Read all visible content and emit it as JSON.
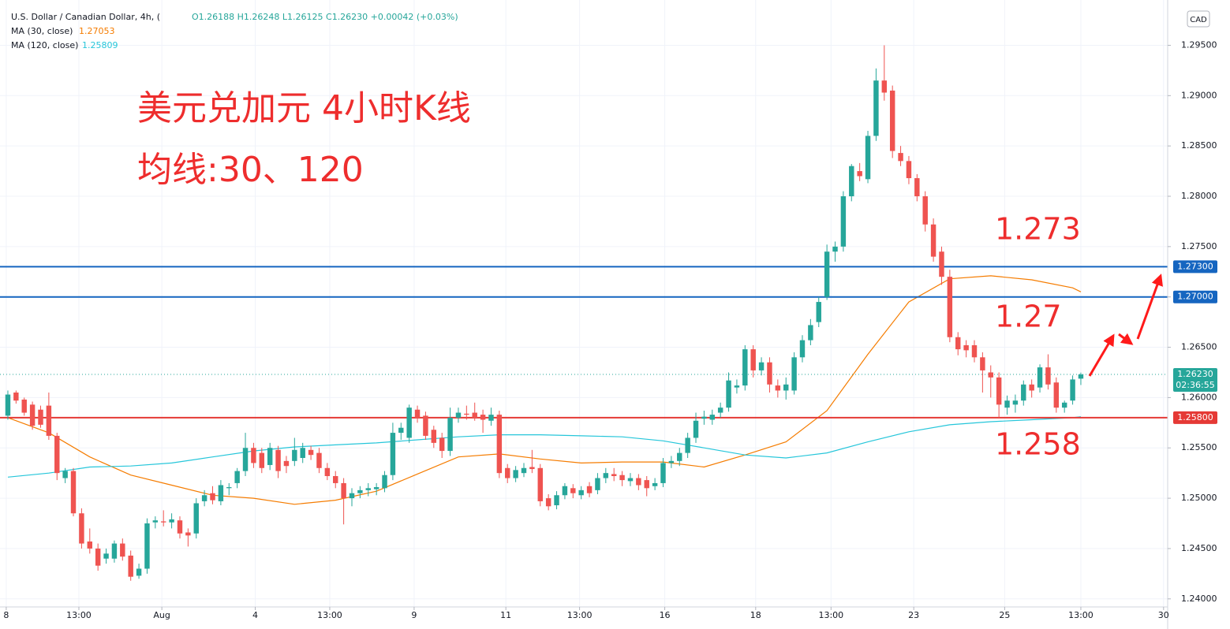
{
  "chart_data": {
    "type": "candlestick",
    "symbol": "U.S. Dollar / Canadian Dollar, 4h, (",
    "ohlc_text": "O1.26188 H1.26248 L1.26125 C1.26230 +0.00042 (+0.03%)",
    "currency": "CAD",
    "up_color": "#26a69a",
    "down_color": "#ef5350",
    "ohlc": [
      [
        1.2582,
        1.2607,
        1.2578,
        1.2603
      ],
      [
        1.2605,
        1.2607,
        1.2594,
        1.2597
      ],
      [
        1.2598,
        1.26,
        1.2582,
        1.2585
      ],
      [
        1.2593,
        1.2596,
        1.2568,
        1.2572
      ],
      [
        1.2588,
        1.2592,
        1.257,
        1.2573
      ],
      [
        1.2592,
        1.2605,
        1.2558,
        1.2562
      ],
      [
        1.2562,
        1.2565,
        1.2518,
        1.2525
      ],
      [
        1.252,
        1.253,
        1.2515,
        1.2527
      ],
      [
        1.2527,
        1.253,
        1.2482,
        1.2485
      ],
      [
        1.2485,
        1.249,
        1.245,
        1.2455
      ],
      [
        1.2457,
        1.247,
        1.2445,
        1.245
      ],
      [
        1.245,
        1.2455,
        1.2428,
        1.2433
      ],
      [
        1.244,
        1.245,
        1.2435,
        1.2445
      ],
      [
        1.244,
        1.2458,
        1.2436,
        1.2455
      ],
      [
        1.2455,
        1.246,
        1.2438,
        1.2442
      ],
      [
        1.2443,
        1.2448,
        1.2418,
        1.2422
      ],
      [
        1.2423,
        1.2435,
        1.242,
        1.243
      ],
      [
        1.243,
        1.248,
        1.2425,
        1.2475
      ],
      [
        1.2476,
        1.2482,
        1.247,
        1.2478
      ],
      [
        1.2477,
        1.2488,
        1.2472,
        1.2476
      ],
      [
        1.2476,
        1.2485,
        1.247,
        1.2479
      ],
      [
        1.2478,
        1.2482,
        1.246,
        1.2465
      ],
      [
        1.2466,
        1.247,
        1.2452,
        1.2463
      ],
      [
        1.2465,
        1.25,
        1.246,
        1.2495
      ],
      [
        1.2497,
        1.2508,
        1.2492,
        1.2503
      ],
      [
        1.2505,
        1.2512,
        1.2494,
        1.2498
      ],
      [
        1.2497,
        1.2518,
        1.2493,
        1.2513
      ],
      [
        1.251,
        1.2515,
        1.2503,
        1.2511
      ],
      [
        1.2515,
        1.253,
        1.251,
        1.2527
      ],
      [
        1.2527,
        1.2565,
        1.2522,
        1.255
      ],
      [
        1.255,
        1.2555,
        1.253,
        1.2535
      ],
      [
        1.2545,
        1.255,
        1.2525,
        1.253
      ],
      [
        1.2533,
        1.2555,
        1.2528,
        1.255
      ],
      [
        1.2548,
        1.2552,
        1.252,
        1.2527
      ],
      [
        1.2537,
        1.2542,
        1.2525,
        1.2532
      ],
      [
        1.2537,
        1.256,
        1.2532,
        1.2548
      ],
      [
        1.254,
        1.2555,
        1.2535,
        1.255
      ],
      [
        1.2548,
        1.2552,
        1.2538,
        1.2543
      ],
      [
        1.2545,
        1.255,
        1.2525,
        1.253
      ],
      [
        1.253,
        1.2535,
        1.2518,
        1.2522
      ],
      [
        1.2522,
        1.2527,
        1.251,
        1.2515
      ],
      [
        1.2515,
        1.252,
        1.2474,
        1.25
      ],
      [
        1.25,
        1.251,
        1.2492,
        1.2505
      ],
      [
        1.2505,
        1.2512,
        1.25,
        1.2508
      ],
      [
        1.2508,
        1.2515,
        1.2502,
        1.251
      ],
      [
        1.2509,
        1.2515,
        1.2503,
        1.2511
      ],
      [
        1.251,
        1.2527,
        1.2506,
        1.2523
      ],
      [
        1.2523,
        1.2575,
        1.2518,
        1.2565
      ],
      [
        1.2565,
        1.2575,
        1.2558,
        1.257
      ],
      [
        1.256,
        1.2593,
        1.2555,
        1.259
      ],
      [
        1.2588,
        1.2592,
        1.2575,
        1.258
      ],
      [
        1.2582,
        1.2586,
        1.2558,
        1.2562
      ],
      [
        1.2568,
        1.2572,
        1.255,
        1.2555
      ],
      [
        1.256,
        1.2565,
        1.254,
        1.2547
      ],
      [
        1.2547,
        1.259,
        1.2542,
        1.258
      ],
      [
        1.258,
        1.259,
        1.2575,
        1.2585
      ],
      [
        1.2584,
        1.2592,
        1.2578,
        1.2583
      ],
      [
        1.2585,
        1.2595,
        1.2577,
        1.258
      ],
      [
        1.2583,
        1.2588,
        1.2565,
        1.2578
      ],
      [
        1.2577,
        1.259,
        1.2572,
        1.2583
      ],
      [
        1.2583,
        1.2587,
        1.252,
        1.2525
      ],
      [
        1.253,
        1.2534,
        1.2515,
        1.252
      ],
      [
        1.252,
        1.2532,
        1.2516,
        1.2528
      ],
      [
        1.2525,
        1.2535,
        1.2521,
        1.253
      ],
      [
        1.2531,
        1.2548,
        1.2525,
        1.2529
      ],
      [
        1.253,
        1.2534,
        1.2492,
        1.2497
      ],
      [
        1.25,
        1.2504,
        1.2488,
        1.2492
      ],
      [
        1.2493,
        1.2507,
        1.2489,
        1.2503
      ],
      [
        1.2503,
        1.2515,
        1.2499,
        1.2512
      ],
      [
        1.251,
        1.2514,
        1.25,
        1.2505
      ],
      [
        1.2503,
        1.2512,
        1.2499,
        1.2508
      ],
      [
        1.2512,
        1.2516,
        1.2501,
        1.2505
      ],
      [
        1.2508,
        1.2525,
        1.2504,
        1.252
      ],
      [
        1.252,
        1.253,
        1.2515,
        1.2525
      ],
      [
        1.2524,
        1.253,
        1.2517,
        1.2522
      ],
      [
        1.2523,
        1.2527,
        1.2512,
        1.2518
      ],
      [
        1.2517,
        1.2525,
        1.2512,
        1.252
      ],
      [
        1.252,
        1.2524,
        1.2508,
        1.2513
      ],
      [
        1.2518,
        1.2522,
        1.2502,
        1.251
      ],
      [
        1.2512,
        1.252,
        1.2508,
        1.2515
      ],
      [
        1.2515,
        1.254,
        1.2511,
        1.2535
      ],
      [
        1.2535,
        1.2542,
        1.253,
        1.2537
      ],
      [
        1.2537,
        1.255,
        1.2532,
        1.2545
      ],
      [
        1.2545,
        1.2565,
        1.254,
        1.256
      ],
      [
        1.256,
        1.2585,
        1.2555,
        1.2577
      ],
      [
        1.2579,
        1.2587,
        1.2573,
        1.2581
      ],
      [
        1.2578,
        1.2588,
        1.2573,
        1.2583
      ],
      [
        1.2585,
        1.2595,
        1.258,
        1.259
      ],
      [
        1.259,
        1.2625,
        1.2586,
        1.2617
      ],
      [
        1.261,
        1.2618,
        1.2604,
        1.2612
      ],
      [
        1.2612,
        1.2652,
        1.2607,
        1.2648
      ],
      [
        1.2648,
        1.2652,
        1.262,
        1.2627
      ],
      [
        1.2627,
        1.264,
        1.2622,
        1.2635
      ],
      [
        1.2635,
        1.264,
        1.2605,
        1.2613
      ],
      [
        1.2612,
        1.2618,
        1.26,
        1.2607
      ],
      [
        1.2607,
        1.262,
        1.2598,
        1.2613
      ],
      [
        1.2607,
        1.2645,
        1.2603,
        1.264
      ],
      [
        1.264,
        1.2662,
        1.2635,
        1.2657
      ],
      [
        1.2657,
        1.2678,
        1.2652,
        1.2672
      ],
      [
        1.2675,
        1.27,
        1.267,
        1.2695
      ],
      [
        1.27,
        1.2752,
        1.2697,
        1.2745
      ],
      [
        1.2745,
        1.2755,
        1.2735,
        1.275
      ],
      [
        1.275,
        1.2805,
        1.2745,
        1.28
      ],
      [
        1.28,
        1.2832,
        1.2795,
        1.283
      ],
      [
        1.2825,
        1.2833,
        1.2815,
        1.282
      ],
      [
        1.2817,
        1.2865,
        1.2813,
        1.286
      ],
      [
        1.286,
        1.2927,
        1.2855,
        1.2915
      ],
      [
        1.2915,
        1.295,
        1.2895,
        1.2903
      ],
      [
        1.2905,
        1.291,
        1.2838,
        1.2845
      ],
      [
        1.2843,
        1.285,
        1.283,
        1.2835
      ],
      [
        1.2835,
        1.284,
        1.2812,
        1.2818
      ],
      [
        1.2818,
        1.2822,
        1.2795,
        1.28
      ],
      [
        1.28,
        1.2805,
        1.2765,
        1.2772
      ],
      [
        1.2772,
        1.2778,
        1.2735,
        1.274
      ],
      [
        1.2745,
        1.275,
        1.2712,
        1.272
      ],
      [
        1.272,
        1.2727,
        1.2655,
        1.266
      ],
      [
        1.266,
        1.2665,
        1.2642,
        1.2648
      ],
      [
        1.2652,
        1.2657,
        1.264,
        1.2647
      ],
      [
        1.2652,
        1.2657,
        1.2635,
        1.264
      ],
      [
        1.264,
        1.2645,
        1.2605,
        1.2627
      ],
      [
        1.2625,
        1.2632,
        1.26,
        1.262
      ],
      [
        1.262,
        1.2625,
        1.258,
        1.2593
      ],
      [
        1.259,
        1.2602,
        1.2583,
        1.2597
      ],
      [
        1.2593,
        1.2603,
        1.2585,
        1.2597
      ],
      [
        1.2597,
        1.2617,
        1.2592,
        1.2613
      ],
      [
        1.2613,
        1.2618,
        1.26,
        1.2607
      ],
      [
        1.261,
        1.2633,
        1.2605,
        1.263
      ],
      [
        1.263,
        1.2643,
        1.2608,
        1.2613
      ],
      [
        1.2615,
        1.262,
        1.2585,
        1.259
      ],
      [
        1.259,
        1.2597,
        1.2585,
        1.2595
      ],
      [
        1.2597,
        1.2622,
        1.2593,
        1.2618
      ],
      [
        1.26188,
        1.26248,
        1.26125,
        1.2623
      ]
    ],
    "ma": [
      {
        "name": "MA (30, close)",
        "legend_value": 1.27053,
        "color": "#f57c00",
        "x": [
          0,
          5,
          10,
          15,
          20,
          25,
          30,
          35,
          40,
          45,
          50,
          55,
          60,
          65,
          70,
          75,
          80,
          85,
          90,
          95,
          100,
          105,
          110,
          115,
          120,
          125,
          130,
          131
        ],
        "values": [
          1.258,
          1.2565,
          1.2541,
          1.2523,
          1.2513,
          1.2503,
          1.25,
          1.2494,
          1.2498,
          1.2507,
          1.2524,
          1.2541,
          1.2544,
          1.2539,
          1.2535,
          1.2536,
          1.2536,
          1.2531,
          1.2543,
          1.2556,
          1.2587,
          1.2643,
          1.2695,
          1.2718,
          1.2721,
          1.2717,
          1.2709,
          1.2705
        ]
      },
      {
        "name": "MA (120, close)",
        "legend_value": 1.25809,
        "color": "#26c6da",
        "x": [
          0,
          5,
          10,
          15,
          20,
          25,
          30,
          35,
          40,
          45,
          50,
          55,
          60,
          65,
          70,
          75,
          80,
          85,
          90,
          95,
          100,
          105,
          110,
          115,
          120,
          125,
          130,
          131
        ],
        "values": [
          1.2521,
          1.2525,
          1.2531,
          1.2532,
          1.2535,
          1.2541,
          1.2547,
          1.2551,
          1.2553,
          1.2555,
          1.2558,
          1.2561,
          1.2563,
          1.2563,
          1.2562,
          1.2561,
          1.2557,
          1.255,
          1.2543,
          1.254,
          1.2545,
          1.2556,
          1.2566,
          1.2573,
          1.2576,
          1.2578,
          1.258,
          1.2581
        ]
      }
    ],
    "levels": [
      {
        "value": 1.273,
        "label": "1.27300",
        "color": "#1565c0"
      },
      {
        "value": 1.27,
        "label": "1.27000",
        "color": "#1565c0"
      },
      {
        "value": 1.258,
        "label": "1.25800",
        "color": "#e53935"
      }
    ],
    "last_price": {
      "value": 1.2623,
      "label": "1.26230",
      "countdown": "02:36:55",
      "color": "#26a69a"
    },
    "annotations": [
      {
        "text": "美元兑加元 4小时K线"
      },
      {
        "text": "均线:30、120"
      },
      {
        "text": "1.273"
      },
      {
        "text": "1.27"
      },
      {
        "text": "1.258"
      }
    ],
    "ylim": [
      1.2392,
      1.2995
    ],
    "yticks": [
      {
        "value": 1.24,
        "label": "1.24000"
      },
      {
        "value": 1.245,
        "label": "1.24500"
      },
      {
        "value": 1.25,
        "label": "1.25000"
      },
      {
        "value": 1.255,
        "label": "1.25500"
      },
      {
        "value": 1.26,
        "label": "1.26000"
      },
      {
        "value": 1.265,
        "label": "1.26500"
      },
      {
        "value": 1.27,
        "label": "1.27000"
      },
      {
        "value": 1.275,
        "label": "1.27500"
      },
      {
        "value": 1.28,
        "label": "1.28000"
      },
      {
        "value": 1.285,
        "label": "1.28500"
      },
      {
        "value": 1.29,
        "label": "1.29000"
      },
      {
        "value": 1.295,
        "label": "1.29500"
      }
    ],
    "xlim": [
      -0.96,
      141.6
    ],
    "xticks": [
      {
        "value": -0.2,
        "label": "8"
      },
      {
        "value": 8.67,
        "label": "13:00"
      },
      {
        "value": 18.8,
        "label": "Aug"
      },
      {
        "value": 30.2,
        "label": "4"
      },
      {
        "value": 39.3,
        "label": "13:00"
      },
      {
        "value": 49.6,
        "label": "9"
      },
      {
        "value": 60.8,
        "label": "11"
      },
      {
        "value": 69.8,
        "label": "13:00"
      },
      {
        "value": 80.2,
        "label": "16"
      },
      {
        "value": 91.3,
        "label": "18"
      },
      {
        "value": 100.5,
        "label": "13:00"
      },
      {
        "value": 110.6,
        "label": "23"
      },
      {
        "value": 121.7,
        "label": "25"
      },
      {
        "value": 131,
        "label": "13:00"
      },
      {
        "value": 141.1,
        "label": "30"
      }
    ],
    "grid": true
  }
}
